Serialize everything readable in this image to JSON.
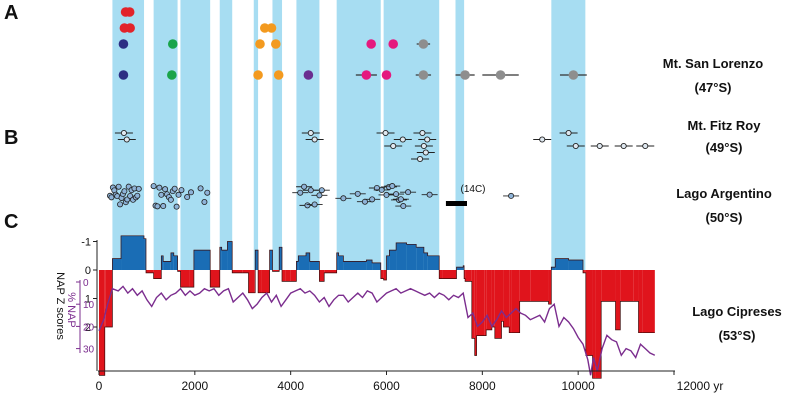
{
  "chart_data": {
    "type": "composite-timeline",
    "panel_letters": [
      "A",
      "B",
      "C"
    ],
    "x_axis": {
      "range": [
        0,
        12000
      ],
      "ticks": [
        0,
        2000,
        4000,
        6000,
        8000,
        10000
      ],
      "last_tick_label": "12000 yr",
      "last_tick_value": 12000
    },
    "intervals": [
      [
        280,
        940
      ],
      [
        1140,
        1640
      ],
      [
        1700,
        2320
      ],
      [
        2520,
        2780
      ],
      [
        3230,
        3320
      ],
      [
        3620,
        3820
      ],
      [
        4120,
        4600
      ],
      [
        4960,
        5880
      ],
      [
        5940,
        7100
      ],
      [
        7440,
        7620
      ],
      [
        9440,
        10150
      ]
    ],
    "colors": {
      "interval_band": "#a7ddf2",
      "z_negative_fill": "#1a6db5",
      "z_positive_fill": "#e0141c",
      "nap_line": "#7b2d8e",
      "marker_outline": "#333333",
      "fitzroy_marker": "#dfe8f0",
      "argentino_marker": "#8eb3d8"
    },
    "sites": {
      "san_lorenzo": {
        "label_name": "Mt. San Lorenzo",
        "label_lat": "(47°S)",
        "rows": [
          [
            {
              "age": 555,
              "color": "#e2232a"
            },
            {
              "age": 640,
              "color": "#e2232a"
            }
          ],
          [
            {
              "age": 530,
              "color": "#e2232a"
            },
            {
              "age": 650,
              "color": "#e2232a"
            },
            {
              "age": 3460,
              "color": "#f39a1f"
            },
            {
              "age": 3600,
              "color": "#f39a1f"
            }
          ],
          [
            {
              "age": 510,
              "color": "#2d2e83"
            },
            {
              "age": 1540,
              "color": "#1aa44a"
            },
            {
              "age": 3360,
              "color": "#f39a1f"
            },
            {
              "age": 3690,
              "color": "#f39a1f"
            },
            {
              "age": 5680,
              "color": "#e5197e"
            },
            {
              "age": 6140,
              "color": "#e5197e"
            },
            {
              "age": 6770,
              "color": "#8e8e8e",
              "err": 140
            }
          ],
          [
            {
              "age": 510,
              "color": "#2d2e83"
            },
            {
              "age": 1520,
              "color": "#1aa44a"
            },
            {
              "age": 3320,
              "color": "#f39a1f"
            },
            {
              "age": 3750,
              "color": "#f39a1f"
            },
            {
              "age": 4370,
              "color": "#6a2e90"
            },
            {
              "age": 5580,
              "color": "#e5197e",
              "err": 220
            },
            {
              "age": 6000,
              "color": "#e5197e"
            },
            {
              "age": 6770,
              "color": "#8e8e8e",
              "err": 160
            },
            {
              "age": 7640,
              "color": "#8e8e8e",
              "err": 200
            },
            {
              "age": 8380,
              "color": "#8e8e8e",
              "err": 380
            },
            {
              "age": 9900,
              "color": "#8e8e8e",
              "err": 280
            }
          ]
        ]
      },
      "fitz_roy": {
        "label_name": "Mt. Fitz Roy",
        "label_lat": "(49°S)",
        "points": [
          {
            "age": 520,
            "row": 0
          },
          {
            "age": 580,
            "row": 1
          },
          {
            "age": 4420,
            "row": 0
          },
          {
            "age": 4500,
            "row": 1
          },
          {
            "age": 5980,
            "row": 0
          },
          {
            "age": 6140,
            "row": 2
          },
          {
            "age": 6340,
            "row": 1
          },
          {
            "age": 6750,
            "row": 0
          },
          {
            "age": 6850,
            "row": 1
          },
          {
            "age": 6780,
            "row": 2
          },
          {
            "age": 6820,
            "row": 3
          },
          {
            "age": 6700,
            "row": 4
          },
          {
            "age": 9250,
            "row": 1
          },
          {
            "age": 9800,
            "row": 0
          },
          {
            "age": 9950,
            "row": 2
          },
          {
            "age": 10450,
            "row": 2
          },
          {
            "age": 10950,
            "row": 2
          },
          {
            "age": 11400,
            "row": 2
          }
        ]
      },
      "argentino": {
        "label_name": "Lago Argentino",
        "label_lat": "(50°S)",
        "c14_label": "(14C)",
        "c14_range": [
          7240,
          7680
        ],
        "ages": [
          230,
          260,
          290,
          320,
          350,
          380,
          410,
          440,
          470,
          500,
          530,
          560,
          590,
          620,
          650,
          680,
          710,
          740,
          770,
          800,
          830,
          1140,
          1180,
          1220,
          1260,
          1300,
          1340,
          1380,
          1420,
          1460,
          1500,
          1540,
          1580,
          1620,
          1660,
          1720,
          1840,
          1920,
          2120,
          2200,
          2260,
          4200,
          4280,
          4350,
          4420,
          4500,
          4600,
          4650,
          5100,
          5400,
          5550,
          5700,
          5800,
          5900,
          6000,
          6050,
          6120,
          6200,
          6260,
          6300,
          6350,
          6450,
          6900,
          8600
        ]
      },
      "cipreses": {
        "label_name": "Lago Cipreses",
        "label_lat": "(53°S)"
      }
    },
    "z_scores": {
      "axis_label": "NAP Z scores",
      "ticks": [
        -1,
        0,
        1,
        2
      ],
      "tick_labels": [
        "-1",
        "0",
        "1",
        "2"
      ],
      "ylim": [
        -1.3,
        3.9
      ],
      "x": [
        0,
        120,
        140,
        280,
        460,
        940,
        980,
        1140,
        1300,
        1340,
        1500,
        1560,
        1640,
        1700,
        1880,
        1980,
        2320,
        2400,
        2520,
        2560,
        2680,
        2780,
        3000,
        3120,
        3240,
        3260,
        3320,
        3400,
        3560,
        3620,
        3760,
        3820,
        3900,
        4000,
        4120,
        4160,
        4320,
        4400,
        4600,
        4700,
        4960,
        5000,
        5100,
        5580,
        5700,
        5880,
        5940,
        6000,
        6060,
        6200,
        6420,
        6620,
        6780,
        6860,
        7100,
        7160,
        7440,
        7460,
        7600,
        7620,
        7640,
        7780,
        7840,
        7880,
        8040,
        8080,
        8200,
        8260,
        8400,
        8440,
        8560,
        8600,
        8780,
        9000,
        9380,
        9440,
        9520,
        9800,
        10100,
        10140,
        10160,
        10300,
        10360,
        10480,
        10780,
        10880,
        11160,
        11260,
        11340,
        11600
      ],
      "y": [
        3.7,
        2,
        2,
        -0.4,
        -1.2,
        -1.1,
        0.1,
        0.3,
        -0.5,
        -0.3,
        -0.6,
        -0.5,
        0.05,
        0.6,
        0.6,
        -0.7,
        0.6,
        0.6,
        -0.8,
        -0.7,
        -1,
        0.1,
        0.1,
        0.8,
        0.8,
        -0.7,
        0.8,
        0.8,
        -0.7,
        0.05,
        -0.8,
        0.4,
        0.4,
        0.4,
        -0.3,
        -0.5,
        -0.6,
        -0.3,
        0.4,
        0.1,
        -0.6,
        -0.5,
        -0.3,
        -0.35,
        -0.25,
        0.3,
        0.35,
        -0.5,
        -0.7,
        -0.95,
        -0.9,
        -0.8,
        -0.6,
        -0.5,
        0.3,
        0.3,
        0.3,
        -0.1,
        -0.15,
        0.3,
        0.4,
        2.4,
        3,
        2.3,
        2.3,
        2.1,
        2,
        2.4,
        1.8,
        2,
        2.2,
        2.2,
        1.1,
        1.1,
        1.2,
        -0.1,
        -0.4,
        -0.35,
        0.1,
        0.1,
        3,
        3.8,
        3.8,
        1.1,
        2.1,
        1.1,
        1.1,
        2.2,
        2.2,
        2.2
      ]
    },
    "nap": {
      "axis_label": "% NAP",
      "ticks": [
        0,
        10,
        20,
        30
      ],
      "tick_labels": [
        "0",
        "10",
        "20",
        "30"
      ],
      "ylim": [
        -5,
        42
      ],
      "x": [
        0,
        100,
        180,
        280,
        400,
        500,
        600,
        700,
        800,
        900,
        1000,
        1100,
        1200,
        1300,
        1400,
        1500,
        1600,
        1700,
        1800,
        1900,
        2000,
        2100,
        2200,
        2300,
        2400,
        2500,
        2600,
        2700,
        2800,
        2900,
        3000,
        3100,
        3200,
        3300,
        3400,
        3500,
        3600,
        3700,
        3800,
        3900,
        4000,
        4100,
        4200,
        4300,
        4400,
        4500,
        4600,
        4700,
        4800,
        4900,
        5000,
        5100,
        5200,
        5300,
        5400,
        5500,
        5600,
        5700,
        5800,
        5900,
        6000,
        6100,
        6200,
        6300,
        6400,
        6500,
        6600,
        6700,
        6800,
        6900,
        7000,
        7100,
        7200,
        7300,
        7400,
        7500,
        7600,
        7700,
        7800,
        7900,
        8000,
        8100,
        8200,
        8300,
        8400,
        8500,
        8600,
        8700,
        8800,
        8900,
        9000,
        9100,
        9200,
        9300,
        9400,
        9500,
        9600,
        9700,
        9800,
        9900,
        10000,
        10100,
        10200,
        10260,
        10320,
        10400,
        10500,
        10600,
        10700,
        10800,
        10900,
        11000,
        11100,
        11200,
        11300,
        11400,
        11500,
        11600
      ],
      "y": [
        22,
        17,
        10,
        3,
        4,
        2,
        5,
        3,
        6,
        4,
        8,
        11,
        7,
        5,
        8,
        6,
        5,
        3,
        6,
        4,
        6,
        5,
        3,
        4,
        3,
        6,
        4,
        3,
        9,
        7,
        5,
        8,
        12,
        10,
        7,
        5,
        9,
        6,
        11,
        8,
        5,
        4,
        3,
        5,
        4,
        6,
        9,
        7,
        11,
        8,
        6,
        6,
        9,
        7,
        5,
        7,
        4,
        5,
        9,
        7,
        5,
        4,
        3,
        5,
        4,
        3,
        4,
        5,
        6,
        5,
        7,
        5,
        6,
        8,
        6,
        7,
        5,
        16,
        14,
        20,
        18,
        15,
        20,
        17,
        13,
        16,
        14,
        12,
        14,
        15,
        17,
        16,
        15,
        18,
        12,
        10,
        20,
        16,
        18,
        21,
        25,
        28,
        35,
        42,
        34,
        40,
        30,
        24,
        26,
        27,
        33,
        30,
        31,
        34,
        28,
        30,
        32,
        33
      ]
    }
  }
}
